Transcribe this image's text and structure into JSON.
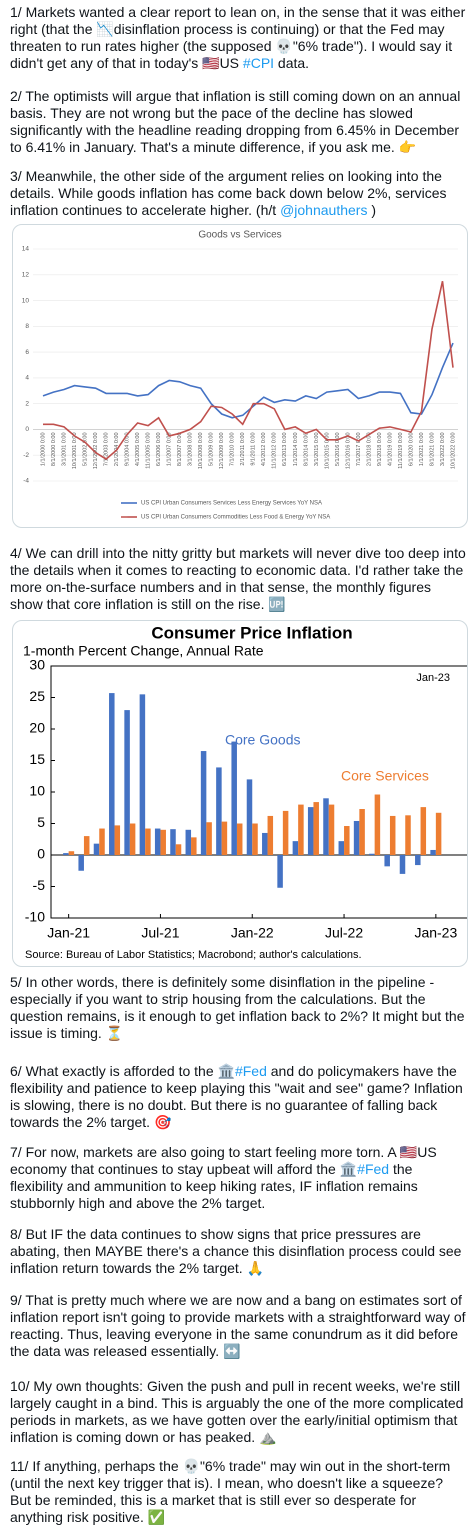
{
  "paragraphs": [
    [
      "1/ Markets wanted a clear report to lean on, in the sense that it was either right (that the 📉disinflation process is continuing) or that the Fed may threaten to run rates higher (the supposed 💀\"6% trade\"). I would say it didn't get any of that in today's 🇺🇸US ",
      {
        "text": "#CPI",
        "link": true
      },
      " data."
    ],
    [
      "2/ The optimists will argue that inflation is still coming down on an annual basis. They are not wrong but the pace of the decline has slowed significantly with the headline reading dropping from 6.45% in December to 6.41% in January. That's a minute difference, if you ask me. 👉"
    ],
    [
      "3/ Meanwhile, the other side of the argument relies on looking into the details. While goods inflation has come back down below 2%, services inflation continues to accelerate higher. (h/t ",
      {
        "text": "@johnauthers",
        "link": true
      },
      " )"
    ],
    [
      "4/ We can drill into the nitty gritty but markets will never dive too deep into the details when it comes to reacting to economic data. I'd rather take the more on-the-surface numbers and in that sense, the monthly figures show that core inflation is still on the rise. 🆙"
    ],
    [
      "5/ In other words, there is definitely some disinflation in the pipeline - especially if you want to strip housing from the calculations. But the question remains, is it enough to get inflation back to 2%? It might but the issue is timing. ⏳"
    ],
    [
      "6/ What exactly is afforded to the 🏛️",
      {
        "text": "#Fed",
        "link": true
      },
      " and do policymakers have the flexibility and patience to keep playing this \"wait and see\" game? Inflation is slowing, there is no doubt. But there is no guarantee of falling back towards the 2% target. 🎯"
    ],
    [
      "7/ For now, markets are also going to start feeling more torn. A 🇺🇸US economy that continues to stay upbeat will afford the 🏛️",
      {
        "text": "#Fed",
        "link": true
      },
      " the flexibility and ammunition to keep hiking rates, IF inflation remains stubbornly high and above the 2% target."
    ],
    [
      "8/ But IF the data continues to show signs that price pressures are abating, then MAYBE there's a chance this disinflation process could see inflation return towards the 2% target. 🙏"
    ],
    [
      "9/ That is pretty much where we are now and a bang on estimates sort of inflation report isn't going to provide markets with a straightforward way of reacting. Thus, leaving everyone in the same conundrum as it did before the data was released essentially. ↔️"
    ],
    [
      "10/ My own thoughts: Given the push and pull in recent weeks, we're still largely caught in a bind. This is arguably the one of the more complicated periods in markets, as we have gotten over the early/initial optimism that inflation is coming down or has peaked. ⛰️"
    ],
    [
      "11/ If anything, perhaps the 💀\"6% trade\" may win out in the short-term (until the next key trigger that is). I mean, who doesn't like a squeeze? But be reminded, this is a market that is still ever so desperate for anything risk positive. ✅"
    ]
  ],
  "chart_data": [
    {
      "type": "line",
      "title": "Goods vs Services",
      "categories": [
        "1/1/2000 0:00",
        "8/1/2000 0:00",
        "3/1/2001 0:00",
        "10/1/2001 0:00",
        "5/1/2002 0:00",
        "12/1/2002 0:00",
        "7/1/2003 0:00",
        "2/1/2004 0:00",
        "9/1/2004 0:00",
        "4/1/2005 0:00",
        "11/1/2005 0:00",
        "6/1/2006 0:00",
        "1/1/2007 0:00",
        "8/1/2007 0:00",
        "3/1/2008 0:00",
        "10/1/2008 0:00",
        "5/1/2009 0:00",
        "12/1/2009 0:00",
        "7/1/2010 0:00",
        "2/1/2011 0:00",
        "9/1/2011 0:00",
        "4/1/2012 0:00",
        "11/1/2012 0:00",
        "6/1/2013 0:00",
        "1/1/2014 0:00",
        "8/1/2014 0:00",
        "3/1/2015 0:00",
        "10/1/2015 0:00",
        "5/1/2016 0:00",
        "12/1/2016 0:00",
        "7/1/2017 0:00",
        "2/1/2018 0:00",
        "9/1/2018 0:00",
        "4/1/2019 0:00",
        "11/1/2019 0:00",
        "6/1/2020 0:00",
        "1/1/2021 0:00",
        "8/1/2021 0:00",
        "3/1/2022 0:00",
        "10/1/2022 0:00"
      ],
      "series": [
        {
          "name": "US CPI Urban Consumers Services Less Energy Services YoY NSA",
          "color": "#4472c4",
          "values": [
            2.6,
            2.9,
            3.1,
            3.4,
            3.3,
            3.2,
            2.8,
            2.8,
            2.8,
            2.6,
            2.7,
            3.4,
            3.8,
            3.7,
            3.4,
            3.2,
            2.0,
            1.2,
            0.9,
            1.1,
            1.8,
            2.5,
            2.1,
            2.3,
            2.2,
            2.6,
            2.4,
            2.9,
            3.0,
            3.1,
            2.4,
            2.6,
            2.9,
            2.9,
            2.8,
            1.3,
            1.2,
            2.7,
            4.8,
            6.7
          ]
        },
        {
          "name": "US CPI Urban Consumers Commodities Less Food & Energy YoY NSA",
          "color": "#c0504d",
          "values": [
            0.4,
            0.4,
            0.2,
            -0.5,
            -1.0,
            -1.8,
            -2.3,
            -1.6,
            -0.4,
            0.5,
            0.3,
            0.9,
            -0.5,
            -0.3,
            0.0,
            0.6,
            1.8,
            1.7,
            1.2,
            0.4,
            2.0,
            2.0,
            1.6,
            0.0,
            0.2,
            -0.3,
            0.0,
            -0.8,
            -0.8,
            -0.5,
            -0.9,
            -0.4,
            0.1,
            0.2,
            0.0,
            -0.2,
            1.4,
            7.8,
            11.5,
            4.8
          ]
        }
      ],
      "ylim": [
        -4,
        14
      ],
      "yticks": [
        -4,
        -2,
        0,
        2,
        4,
        6,
        8,
        10,
        12,
        14
      ],
      "grid": true
    },
    {
      "type": "bar",
      "title": "Consumer Price Inflation",
      "subtitle": "1-month Percent Change, Annual Rate",
      "annotation": "Jan-23",
      "source": "Source: Bureau of Labor Statistics; Macrobond; author's calculations.",
      "categories": [
        "Jan-21",
        null,
        null,
        null,
        null,
        null,
        "Jul-21",
        null,
        null,
        null,
        null,
        null,
        "Jan-22",
        null,
        null,
        null,
        null,
        null,
        "Jul-22",
        null,
        null,
        null,
        null,
        null,
        "Jan-23"
      ],
      "series": [
        {
          "name": "Core Goods",
          "color": "#4472c4",
          "values": [
            0.3,
            -2.5,
            1.8,
            25.7,
            23.0,
            25.5,
            4.2,
            4.1,
            4.0,
            16.5,
            13.9,
            18.0,
            12.0,
            3.5,
            -5.2,
            2.2,
            7.6,
            9.0,
            2.2,
            5.4,
            0.2,
            -1.8,
            -3.0,
            -1.6,
            0.8
          ]
        },
        {
          "name": "Core Services",
          "color": "#ed7d31",
          "values": [
            0.6,
            3.0,
            4.2,
            4.7,
            5.0,
            4.2,
            4.0,
            1.7,
            2.8,
            5.2,
            5.3,
            5.0,
            5.0,
            6.2,
            7.0,
            8.0,
            8.4,
            8.0,
            4.6,
            7.3,
            9.6,
            6.2,
            6.3,
            7.6,
            6.7
          ]
        }
      ],
      "ylim": [
        -10,
        30
      ],
      "yticks": [
        -10,
        -5,
        0,
        5,
        10,
        15,
        20,
        25,
        30
      ],
      "grid": false
    }
  ]
}
